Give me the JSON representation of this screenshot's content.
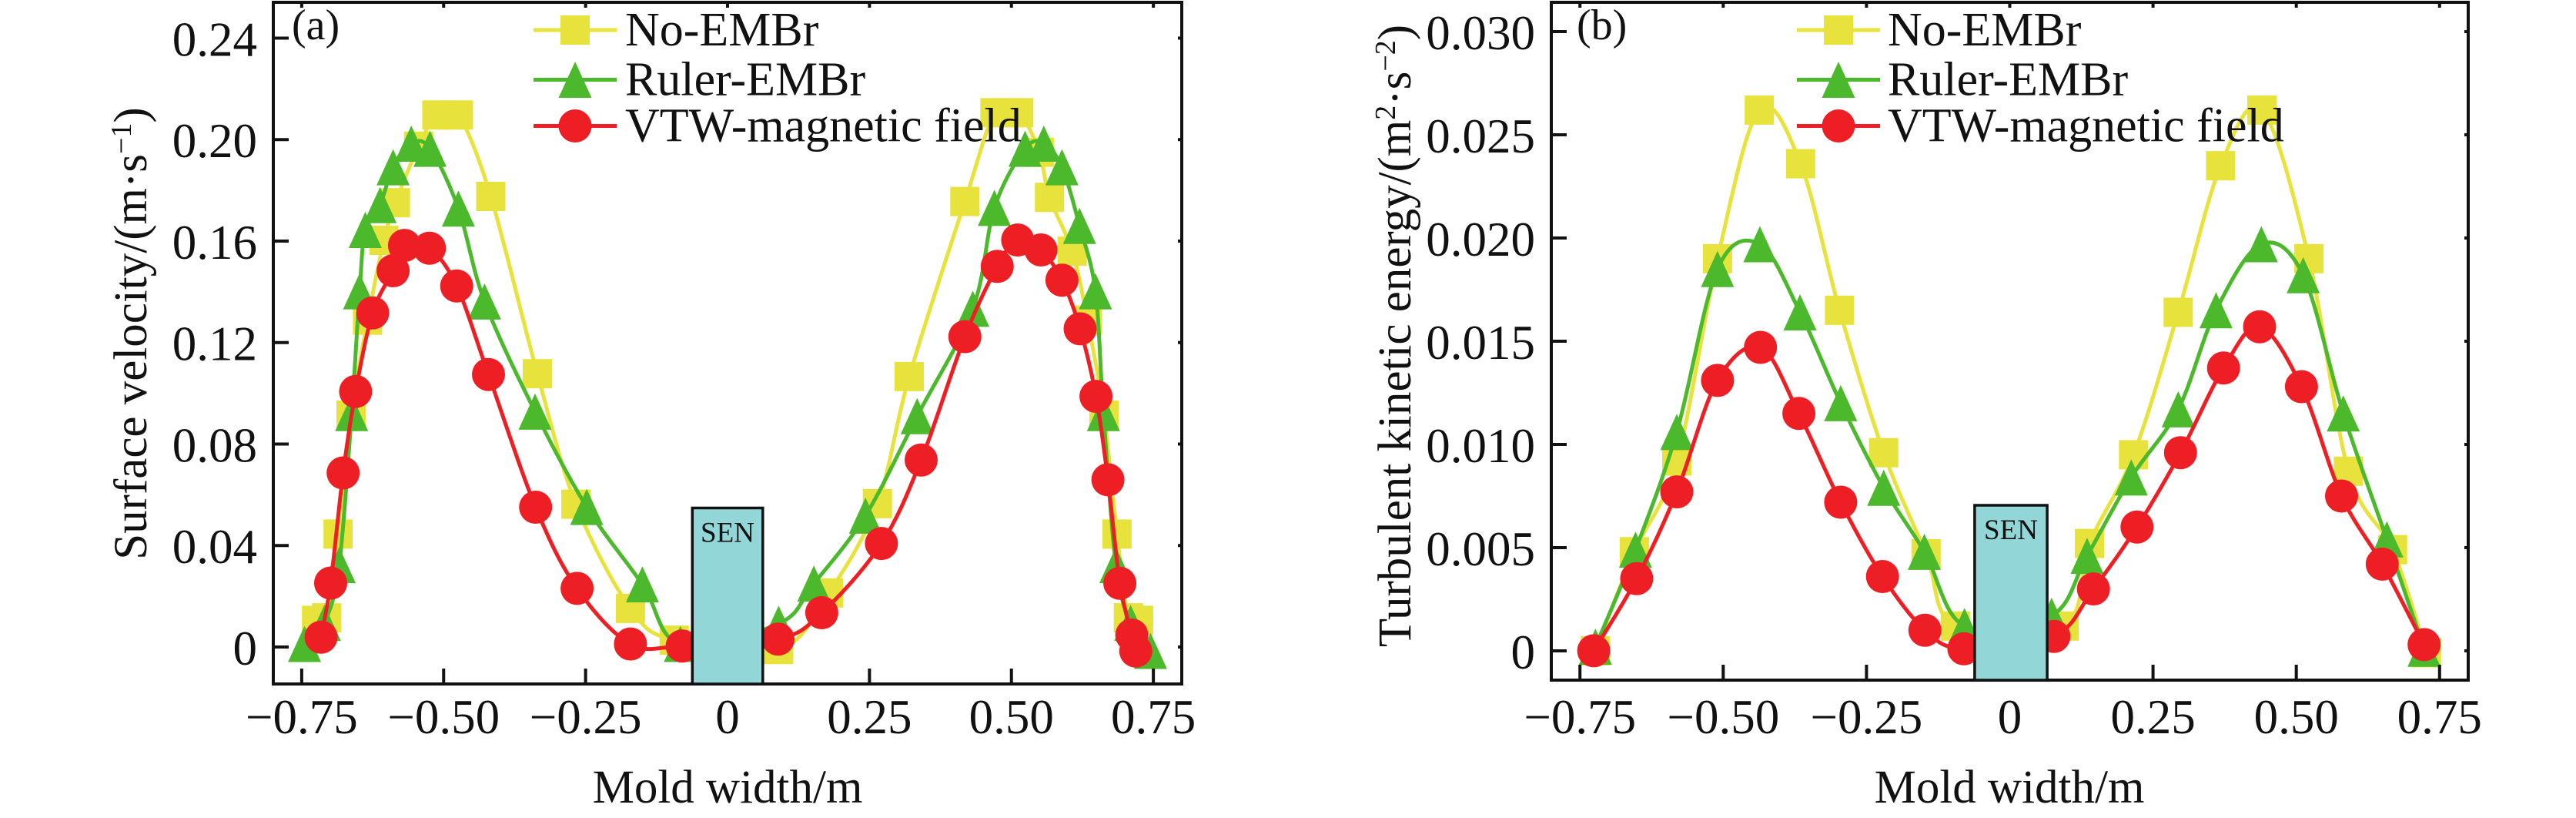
{
  "figure": {
    "background": "#ffffff",
    "text_color": "#111111"
  },
  "chart_data": [
    {
      "panel_label": "(a)",
      "type": "line",
      "xlabel": "Mold width/m",
      "ylabel": "Surface velocity/(m·s⁻¹)",
      "ylabel_rich": [
        {
          "t": "Surface velocity/(m·s"
        },
        {
          "t": "−1",
          "sup": true
        },
        {
          "t": ")"
        }
      ],
      "xlim": [
        -0.8,
        0.8
      ],
      "ylim": [
        -0.01457,
        0.2541
      ],
      "grid": false,
      "xticks": {
        "values": [
          -0.75,
          -0.5,
          -0.25,
          0,
          0.25,
          0.5,
          0.75
        ],
        "labels": [
          "−0.75",
          "−0.50",
          "−0.25",
          "0",
          "0.25",
          "0.50",
          "0.75"
        ]
      },
      "yticks": {
        "values": [
          0,
          0.04,
          0.08,
          0.12,
          0.16,
          0.2,
          0.24
        ],
        "labels": [
          "0",
          "0.04",
          "0.08",
          "0.12",
          "0.16",
          "0.20",
          "0.24"
        ]
      },
      "legend": {
        "position": "top-left-inside",
        "entries": [
          "No-EMBr",
          "Ruler-EMBr",
          "VTW-magnetic field"
        ]
      },
      "annotation_box": {
        "label": "SEN",
        "x_range": [
          -0.062,
          0.062
        ],
        "y_top": 0.0548,
        "fill": "#92d6d8",
        "border": "#111111"
      },
      "series": [
        {
          "name": "No-EMBr",
          "color": "#e8e33c",
          "marker": "square",
          "x": [
            -0.724,
            -0.706,
            -0.686,
            -0.663,
            -0.634,
            -0.605,
            -0.585,
            -0.544,
            -0.512,
            -0.474,
            -0.417,
            -0.335,
            -0.267,
            -0.171,
            -0.094,
            0.09,
            0.178,
            0.264,
            0.32,
            0.418,
            0.471,
            0.513,
            0.549,
            0.567,
            0.607,
            0.634,
            0.663,
            0.686,
            0.706,
            0.724
          ],
          "y": [
            0.0105,
            0.0115,
            0.0445,
            0.0914,
            0.1288,
            0.1603,
            0.1751,
            0.1974,
            0.2097,
            0.2097,
            0.1776,
            0.1077,
            0.0563,
            0.0152,
            0.0027,
            -0.001,
            0.0213,
            0.0565,
            0.1066,
            0.1756,
            0.2106,
            0.2106,
            0.195,
            0.1772,
            0.156,
            0.1288,
            0.0914,
            0.0445,
            0.0115,
            0.0105
          ]
        },
        {
          "name": "Ruler-EMBr",
          "color": "#4cb82c",
          "marker": "triangle",
          "x": [
            -0.745,
            -0.71,
            -0.684,
            -0.662,
            -0.648,
            -0.638,
            -0.612,
            -0.589,
            -0.557,
            -0.524,
            -0.474,
            -0.428,
            -0.339,
            -0.248,
            -0.15,
            -0.083,
            0.09,
            0.152,
            0.243,
            0.334,
            0.432,
            0.47,
            0.524,
            0.557,
            0.589,
            0.62,
            0.648,
            0.662,
            0.684,
            0.71,
            0.745
          ],
          "y": [
            0.0012,
            0.0095,
            0.0323,
            0.0922,
            0.1402,
            0.1644,
            0.1742,
            0.1891,
            0.1984,
            0.1964,
            0.1728,
            0.1362,
            0.0928,
            0.0552,
            0.0247,
            0.0012,
            0.0092,
            0.025,
            0.0518,
            0.091,
            0.1333,
            0.1731,
            0.1964,
            0.1984,
            0.1891,
            0.166,
            0.1402,
            0.0922,
            0.0323,
            0.0095,
            -0.0015
          ]
        },
        {
          "name": "VTW-magnetic field",
          "color": "#ed1f24",
          "marker": "circle",
          "x": [
            -0.716,
            -0.699,
            -0.677,
            -0.655,
            -0.625,
            -0.589,
            -0.569,
            -0.525,
            -0.477,
            -0.421,
            -0.338,
            -0.265,
            -0.171,
            -0.08,
            0.089,
            0.166,
            0.271,
            0.341,
            0.418,
            0.475,
            0.511,
            0.552,
            0.589,
            0.621,
            0.649,
            0.67,
            0.691,
            0.712,
            0.719
          ],
          "y": [
            0.0039,
            0.0252,
            0.0686,
            0.1007,
            0.1317,
            0.1483,
            0.1583,
            0.1572,
            0.1423,
            0.1074,
            0.0551,
            0.0231,
            0.0012,
            0.0004,
            0.0031,
            0.0135,
            0.0408,
            0.0737,
            0.1223,
            0.15,
            0.1604,
            0.1565,
            0.1446,
            0.1254,
            0.0988,
            0.0659,
            0.0251,
            0.0047,
            -0.0016
          ]
        }
      ]
    },
    {
      "panel_label": "(b)",
      "type": "line",
      "xlabel": "Mold width/m",
      "ylabel": "Turbulent kinetic energy/(m²·s⁻²)",
      "ylabel_rich": [
        {
          "t": "Turbulent kinetic energy/(m"
        },
        {
          "t": "2",
          "sup": true
        },
        {
          "t": "·s"
        },
        {
          "t": "−2",
          "sup": true
        },
        {
          "t": ")"
        }
      ],
      "xlim": [
        -0.8,
        0.8
      ],
      "ylim": [
        -0.00142,
        0.03142
      ],
      "grid": false,
      "xticks": {
        "values": [
          -0.75,
          -0.5,
          -0.25,
          0,
          0.25,
          0.5,
          0.75
        ],
        "labels": [
          "−0.75",
          "−0.50",
          "−0.25",
          "0",
          "0.25",
          "0.50",
          "0.75"
        ]
      },
      "yticks": {
        "values": [
          0,
          0.005,
          0.01,
          0.015,
          0.02,
          0.025,
          0.03
        ],
        "labels": [
          "0",
          "0.005",
          "0.010",
          "0.015",
          "0.020",
          "0.025",
          "0.030"
        ]
      },
      "legend": {
        "position": "top-left-inside",
        "entries": [
          "No-EMBr",
          "Ruler-EMBr",
          "VTW-magnetic field"
        ]
      },
      "annotation_box": {
        "label": "SEN",
        "x_range": [
          -0.0613,
          0.0653
        ],
        "y_top": 0.00705,
        "fill": "#92d6d8",
        "border": "#111111"
      },
      "series": [
        {
          "name": "No-EMBr",
          "color": "#e8e33c",
          "marker": "square",
          "x": [
            -0.723,
            -0.655,
            -0.581,
            -0.51,
            -0.437,
            -0.365,
            -0.297,
            -0.22,
            -0.146,
            -0.095,
            0.095,
            0.139,
            0.216,
            0.294,
            0.368,
            0.44,
            0.522,
            0.591,
            0.668,
            0.727
          ],
          "y": [
            0.0,
            0.0048,
            0.0092,
            0.019,
            0.0262,
            0.0236,
            0.0165,
            0.0096,
            0.0047,
            0.0012,
            0.0012,
            0.0052,
            0.0095,
            0.0164,
            0.0235,
            0.0262,
            0.019,
            0.0087,
            0.0049,
            -0.0001
          ]
        },
        {
          "name": "Ruler-EMBr",
          "color": "#4cb82c",
          "marker": "triangle",
          "x": [
            -0.723,
            -0.653,
            -0.581,
            -0.51,
            -0.436,
            -0.366,
            -0.295,
            -0.22,
            -0.149,
            -0.079,
            0.073,
            0.135,
            0.212,
            0.294,
            0.36,
            0.439,
            0.512,
            0.582,
            0.658,
            0.723
          ],
          "y": [
            0.0002,
            0.0049,
            0.0106,
            0.0185,
            0.0197,
            0.0164,
            0.012,
            0.0079,
            0.0048,
            0.0012,
            0.0017,
            0.0046,
            0.0084,
            0.0117,
            0.0165,
            0.0197,
            0.0182,
            0.0115,
            0.0054,
            0.0001
          ]
        },
        {
          "name": "VTW-magnetic field",
          "color": "#ed1f24",
          "marker": "circle",
          "x": [
            -0.726,
            -0.651,
            -0.581,
            -0.51,
            -0.435,
            -0.368,
            -0.295,
            -0.222,
            -0.148,
            -0.08,
            0.077,
            0.146,
            0.222,
            0.298,
            0.373,
            0.436,
            0.509,
            0.579,
            0.65,
            0.723
          ],
          "y": [
            0.0,
            0.0035,
            0.0077,
            0.0131,
            0.0147,
            0.0115,
            0.0072,
            0.0036,
            0.001,
            0.0001,
            0.0007,
            0.003,
            0.006,
            0.0096,
            0.0137,
            0.0157,
            0.0128,
            0.0075,
            0.0042,
            0.0003
          ]
        }
      ]
    }
  ]
}
